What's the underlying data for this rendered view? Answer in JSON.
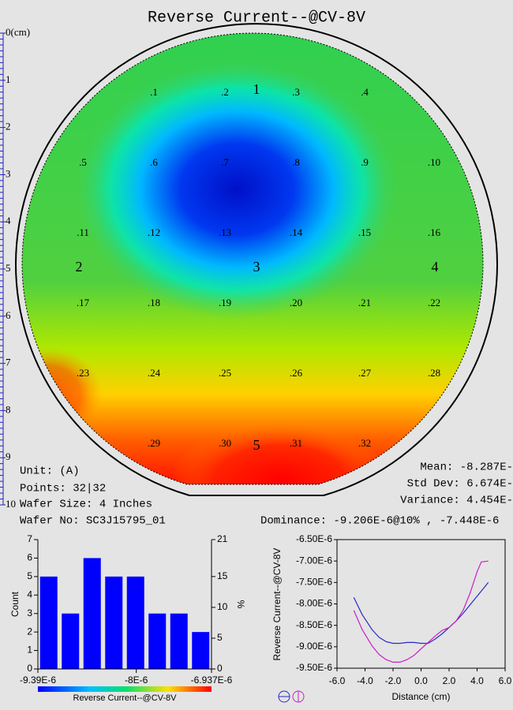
{
  "title": "Reverse Current--@CV-8V",
  "ruler": {
    "labels": [
      "0(cm)",
      "1",
      "2",
      "3",
      "4",
      "5",
      "6",
      "7",
      "8",
      "9",
      "10"
    ]
  },
  "wafer": {
    "points": [
      ".1",
      ".2",
      ".3",
      ".4",
      ".5",
      ".6",
      ".7",
      ".8",
      ".9",
      ".10",
      ".11",
      ".12",
      ".13",
      ".14",
      ".15",
      ".16",
      ".17",
      ".18",
      ".19",
      ".20",
      ".21",
      ".22",
      ".23",
      ".24",
      ".25",
      ".26",
      ".27",
      ".28",
      ".29",
      ".30",
      ".31",
      ".32"
    ],
    "sites": [
      "1",
      "2",
      "3",
      "4",
      "5"
    ]
  },
  "info": {
    "unit": "Unit: (A)",
    "points": "Points: 32|32",
    "wafer_size": "Wafer Size: 4 Inches",
    "wafer_no": "Wafer No: SC3J15795_01",
    "mean": "Mean: -8.287E-",
    "std_dev": "Std Dev: 6.674E-",
    "variance": "Variance: 4.454E-",
    "dominance": "Dominance: -9.206E-6@10% , -7.448E-6"
  },
  "chart_data": [
    {
      "type": "histogram",
      "ylabel": "Count",
      "y2label": "%",
      "colorbar_label": "Reverse Current--@CV-8V",
      "color": "#0000ff",
      "bins": [
        -9.39e-06,
        -9.083375e-06,
        -8.77675e-06,
        -8.470125e-06,
        -8.1635e-06,
        -7.856875e-06,
        -7.55025e-06,
        -7.243625e-06,
        -6.937e-06
      ],
      "values": [
        5,
        3,
        6,
        5,
        5,
        3,
        3,
        2
      ],
      "xlim": [
        -9.39e-06,
        -6.937e-06
      ],
      "xticks": [
        {
          "value": -9.39e-06,
          "label": "-9.39E-6"
        },
        {
          "value": -8e-06,
          "label": "-8E-6"
        },
        {
          "value": -6.937e-06,
          "label": "-6.937E-6"
        }
      ],
      "ylim": [
        0,
        7
      ],
      "yticks": [
        0,
        1,
        2,
        3,
        4,
        5,
        6,
        7
      ],
      "y2lim": [
        0,
        21
      ],
      "y2ticks": [
        0,
        5,
        10,
        15,
        21
      ]
    },
    {
      "type": "line",
      "xlabel": "Distance (cm)",
      "ylabel": "Reverse Current--@CV-8V",
      "xlim": [
        -6,
        6
      ],
      "xticks": [
        {
          "value": -6,
          "label": "-6.0"
        },
        {
          "value": -4,
          "label": "-4.0"
        },
        {
          "value": -2,
          "label": "-2.0"
        },
        {
          "value": 0,
          "label": "0.0"
        },
        {
          "value": 2,
          "label": "2.0"
        },
        {
          "value": 4,
          "label": "4.0"
        },
        {
          "value": 6,
          "label": "6.0"
        }
      ],
      "ylim": [
        -9.5e-06,
        -6.5e-06
      ],
      "yticks": [
        {
          "value": -9.5e-06,
          "label": "-9.50E-6"
        },
        {
          "value": -9e-06,
          "label": "-9.00E-6"
        },
        {
          "value": -8.5e-06,
          "label": "-8.50E-6"
        },
        {
          "value": -8e-06,
          "label": "-8.00E-6"
        },
        {
          "value": -7.5e-06,
          "label": "-7.50E-6"
        },
        {
          "value": -7e-06,
          "label": "-7.00E-6"
        },
        {
          "value": -6.5e-06,
          "label": "-6.50E-6"
        }
      ],
      "series": [
        {
          "color": "#2828c8",
          "x": [
            -4.8,
            -4.2,
            -3.5,
            -3,
            -2.5,
            -2,
            -1.5,
            -1,
            -0.5,
            0,
            0.5,
            1,
            1.5,
            2,
            2.5,
            3,
            3.5,
            4,
            4.5,
            4.8
          ],
          "values": [
            -7.85e-06,
            -8.25e-06,
            -8.6e-06,
            -8.78e-06,
            -8.88e-06,
            -8.92e-06,
            -8.92e-06,
            -8.9e-06,
            -8.9e-06,
            -8.92e-06,
            -8.92e-06,
            -8.82e-06,
            -8.7e-06,
            -8.55e-06,
            -8.4e-06,
            -8.22e-06,
            -8.02e-06,
            -7.82e-06,
            -7.62e-06,
            -7.5e-06
          ]
        },
        {
          "color": "#c81ec8",
          "x": [
            -4.8,
            -4.2,
            -3.5,
            -3,
            -2.5,
            -2,
            -1.5,
            -1,
            -0.5,
            0,
            0.5,
            1,
            1.5,
            2,
            2.5,
            3,
            3.5,
            4,
            4.3,
            4.8
          ],
          "values": [
            -8.15e-06,
            -8.6e-06,
            -8.98e-06,
            -9.18e-06,
            -9.3e-06,
            -9.36e-06,
            -9.36e-06,
            -9.3e-06,
            -9.2e-06,
            -9.05e-06,
            -8.9e-06,
            -8.75e-06,
            -8.62e-06,
            -8.55e-06,
            -8.4e-06,
            -8.15e-06,
            -7.75e-06,
            -7.25e-06,
            -7.02e-06,
            -7e-06
          ]
        }
      ]
    }
  ]
}
